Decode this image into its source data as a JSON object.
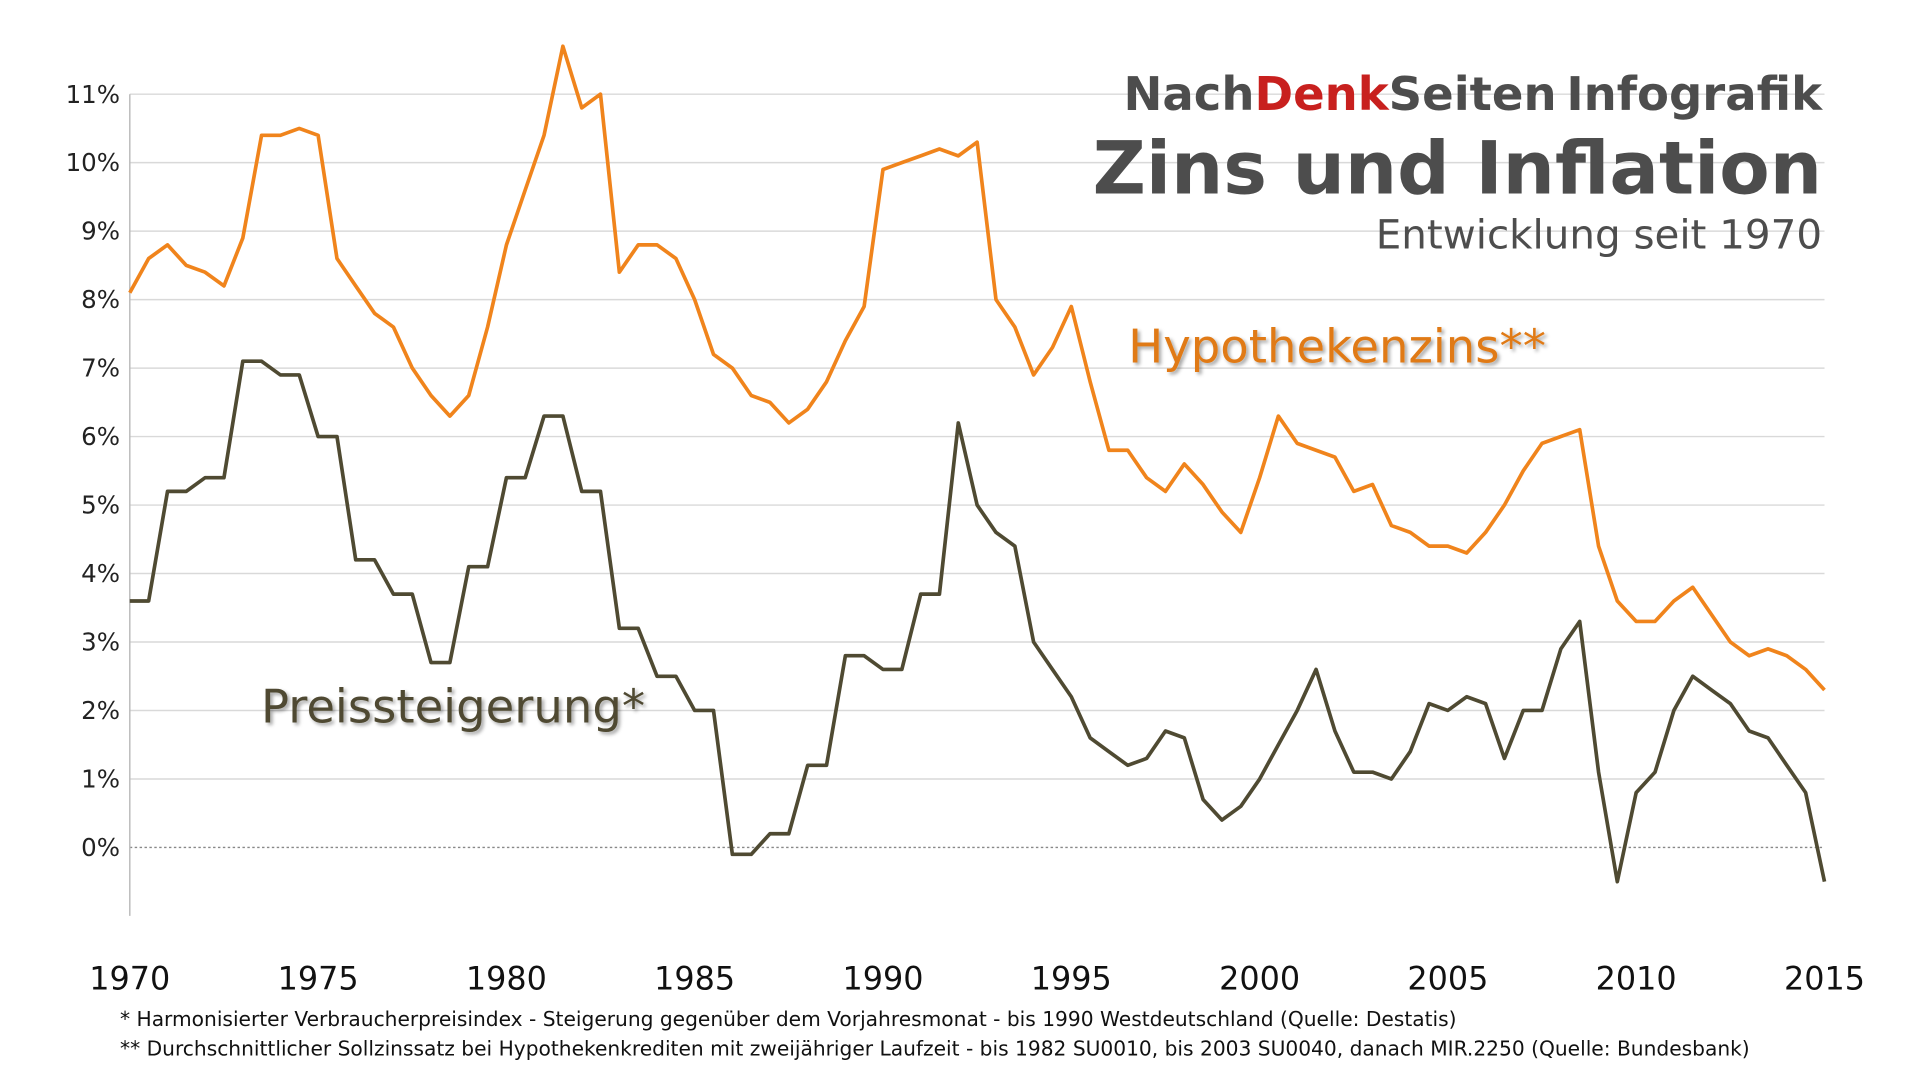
{
  "brand": [
    "Nach",
    "Denk",
    "Seiten",
    "Infografik"
  ],
  "footnotes": [
    "* Harmonisierter Verbraucherpreisindex - Steigerung gegenüber dem Vorjahresmonat - bis 1990 Westdeutschland (Quelle: Destatis)",
    "** Durchschnittlicher Sollzinssatz bei Hypothekenkrediten mit zweijähriger Laufzeit - bis 1982 SU0010, bis 2003 SU0040, danach MIR.2250 (Quelle: Bundesbank)"
  ],
  "chart_data": {
    "type": "line",
    "title": "Zins und Inflation",
    "subtitle": "Entwicklung seit 1970",
    "x": [
      1970,
      1970.5,
      1971,
      1971.5,
      1972,
      1972.5,
      1973,
      1973.5,
      1974,
      1974.5,
      1975,
      1975.5,
      1976,
      1976.5,
      1977,
      1977.5,
      1978,
      1978.5,
      1979,
      1979.5,
      1980,
      1980.5,
      1981,
      1981.5,
      1982,
      1982.5,
      1983,
      1983.5,
      1984,
      1984.5,
      1985,
      1985.5,
      1986,
      1986.5,
      1987,
      1987.5,
      1988,
      1988.5,
      1989,
      1989.5,
      1990,
      1990.5,
      1991,
      1991.5,
      1992,
      1992.5,
      1993,
      1993.5,
      1994,
      1994.5,
      1995,
      1995.5,
      1996,
      1996.5,
      1997,
      1997.5,
      1998,
      1998.5,
      1999,
      1999.5,
      2000,
      2000.5,
      2001,
      2001.5,
      2002,
      2002.5,
      2003,
      2003.5,
      2004,
      2004.5,
      2005,
      2005.5,
      2006,
      2006.5,
      2007,
      2007.5,
      2008,
      2008.5,
      2009,
      2009.5,
      2010,
      2010.5,
      2011,
      2011.5,
      2012,
      2012.5,
      2013,
      2013.5,
      2014,
      2014.5,
      2015
    ],
    "series": [
      {
        "name": "Hypothekenzins**",
        "color": "#f0841c",
        "values": [
          8.1,
          8.6,
          8.8,
          8.5,
          8.4,
          8.2,
          8.9,
          10.4,
          10.4,
          10.5,
          10.4,
          8.6,
          8.2,
          7.8,
          7.6,
          7.0,
          6.6,
          6.3,
          6.6,
          7.6,
          8.8,
          9.6,
          10.4,
          11.7,
          10.8,
          11.0,
          8.4,
          8.8,
          8.8,
          8.6,
          8.0,
          7.2,
          7.0,
          6.6,
          6.5,
          6.2,
          6.4,
          6.8,
          7.4,
          7.9,
          9.9,
          10.0,
          10.1,
          10.2,
          10.1,
          10.3,
          8.0,
          7.6,
          6.9,
          7.3,
          7.9,
          6.8,
          5.8,
          5.8,
          5.4,
          5.2,
          5.6,
          5.3,
          4.9,
          4.6,
          5.4,
          6.3,
          5.9,
          5.8,
          5.7,
          5.2,
          5.3,
          4.7,
          4.6,
          4.4,
          4.4,
          4.3,
          4.6,
          5.0,
          5.5,
          5.9,
          6.0,
          6.1,
          4.4,
          3.6,
          3.3,
          3.3,
          3.6,
          3.8,
          3.4,
          3.0,
          2.8,
          2.9,
          2.8,
          2.6,
          2.3
        ]
      },
      {
        "name": "Preissteigerung*",
        "color": "#4f4a32",
        "values": [
          3.6,
          3.6,
          5.2,
          5.2,
          5.4,
          5.4,
          7.1,
          7.1,
          6.9,
          6.9,
          6.0,
          6.0,
          4.2,
          4.2,
          3.7,
          3.7,
          2.7,
          2.7,
          4.1,
          4.1,
          5.4,
          5.4,
          6.3,
          6.3,
          5.2,
          5.2,
          3.2,
          3.2,
          2.5,
          2.5,
          2.0,
          2.0,
          -0.1,
          -0.1,
          0.2,
          0.2,
          1.2,
          1.2,
          2.8,
          2.8,
          2.6,
          2.6,
          3.7,
          3.7,
          6.2,
          5.0,
          4.6,
          4.4,
          3.0,
          2.6,
          2.2,
          1.6,
          1.4,
          1.2,
          1.3,
          1.7,
          1.6,
          0.7,
          0.4,
          0.6,
          1.0,
          1.5,
          2.0,
          2.6,
          1.7,
          1.1,
          1.1,
          1.0,
          1.4,
          2.1,
          2.0,
          2.2,
          2.1,
          1.3,
          2.0,
          2.0,
          2.9,
          3.3,
          1.1,
          -0.5,
          0.8,
          1.1,
          2.0,
          2.5,
          2.3,
          2.1,
          1.7,
          1.6,
          1.2,
          0.8,
          -0.5
        ]
      }
    ],
    "xlim": [
      1970,
      2015
    ],
    "xticks": [
      1970,
      1975,
      1980,
      1985,
      1990,
      1995,
      2000,
      2005,
      2010,
      2015
    ],
    "ylim": [
      -1,
      12
    ],
    "yticks": [
      {
        "value": 0,
        "label": "0%"
      },
      {
        "value": 1,
        "label": "1%"
      },
      {
        "value": 2,
        "label": "2%"
      },
      {
        "value": 3,
        "label": "3%"
      },
      {
        "value": 4,
        "label": "4%"
      },
      {
        "value": 5,
        "label": "5%"
      },
      {
        "value": 6,
        "label": "6%"
      },
      {
        "value": 7,
        "label": "7%"
      },
      {
        "value": 8,
        "label": "8%"
      },
      {
        "value": 9,
        "label": "9%"
      },
      {
        "value": 10,
        "label": "10%"
      },
      {
        "value": 11,
        "label": "11%"
      }
    ],
    "grid": true
  }
}
